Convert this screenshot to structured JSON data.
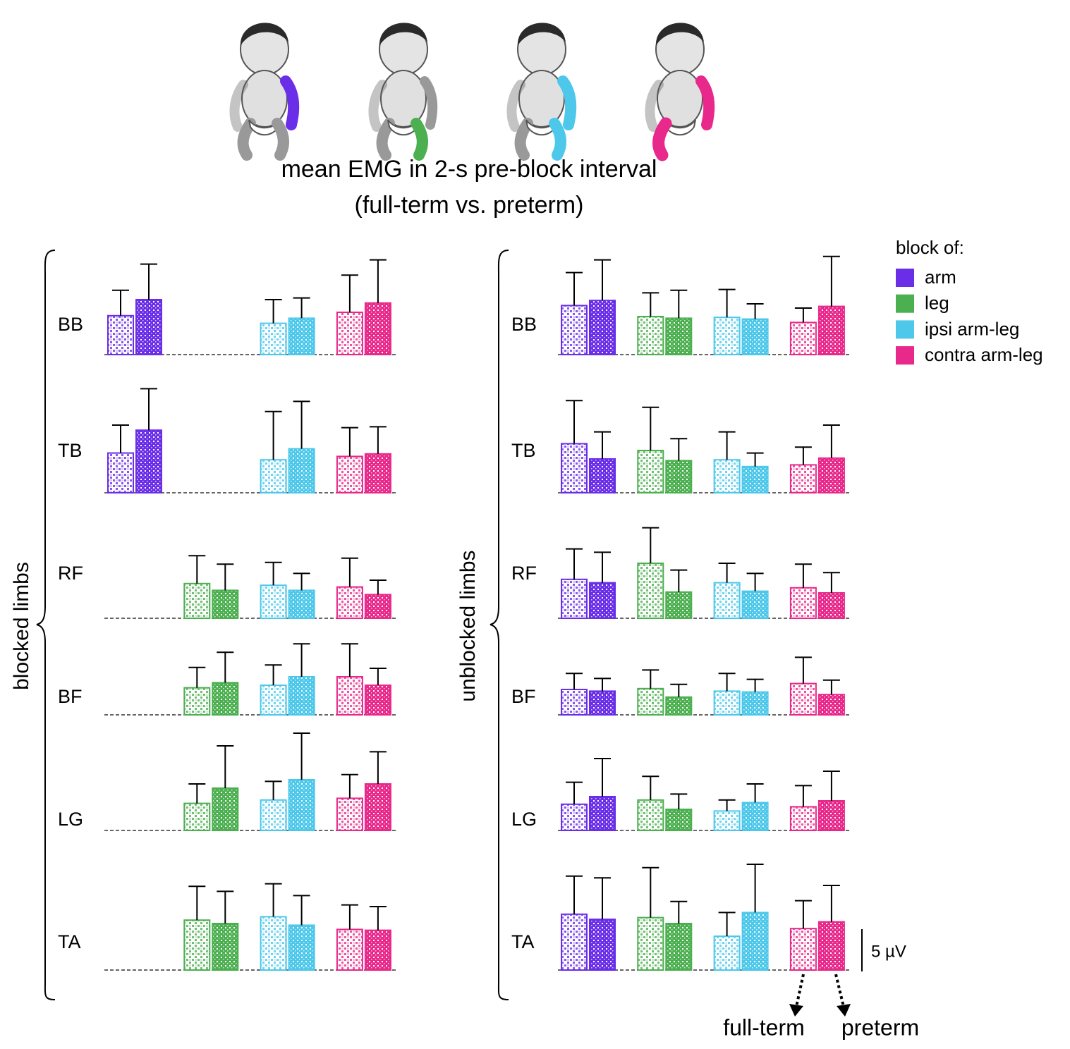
{
  "chart_data": {
    "type": "bar",
    "title": "mean EMG in 2-s pre-block interval",
    "subtitle": "(full-term vs. preterm)",
    "legend_title": "block of:",
    "rows": [
      "BB",
      "TB",
      "RF",
      "BF",
      "LG",
      "TA"
    ],
    "groups": [
      "full-term",
      "preterm"
    ],
    "scale_bar": {
      "value": 5,
      "label": "5 µV"
    },
    "series": [
      {
        "name": "arm",
        "color": "#6a2ee8"
      },
      {
        "name": "leg",
        "color": "#4caf50"
      },
      {
        "name": "ipsi arm-leg",
        "color": "#4dc8ea"
      },
      {
        "name": "contra arm-leg",
        "color": "#e8288a"
      }
    ],
    "panels": [
      {
        "label": "blocked limbs",
        "series": [
          {
            "full_term": [
              4.6,
              4.7,
              null,
              null,
              null,
              null
            ],
            "full_term_error": [
              3.0,
              3.3,
              null,
              null,
              null,
              null
            ],
            "preterm": [
              6.5,
              7.4,
              null,
              null,
              null,
              null
            ],
            "preterm_error": [
              4.2,
              4.9,
              null,
              null,
              null,
              null
            ]
          },
          {
            "full_term": [
              null,
              null,
              4.1,
              3.2,
              3.2,
              5.9
            ],
            "full_term_error": [
              null,
              null,
              3.3,
              2.4,
              2.3,
              4.0
            ],
            "preterm": [
              null,
              null,
              3.3,
              3.8,
              5.0,
              5.5
            ],
            "preterm_error": [
              null,
              null,
              3.1,
              3.6,
              5.0,
              3.8
            ]
          },
          {
            "full_term": [
              3.7,
              3.9,
              3.9,
              3.5,
              3.6,
              6.3
            ],
            "full_term_error": [
              2.8,
              5.7,
              2.7,
              2.4,
              2.2,
              3.9
            ],
            "preterm": [
              4.3,
              5.2,
              3.3,
              4.5,
              6.0,
              5.3
            ],
            "preterm_error": [
              2.4,
              5.6,
              2.0,
              3.9,
              5.5,
              3.5
            ]
          },
          {
            "full_term": [
              5.0,
              4.3,
              3.7,
              4.5,
              3.8,
              4.8
            ],
            "full_term_error": [
              4.4,
              3.4,
              3.4,
              3.9,
              2.8,
              2.9
            ],
            "preterm": [
              6.1,
              4.6,
              2.8,
              3.5,
              5.5,
              4.7
            ],
            "preterm_error": [
              5.1,
              3.2,
              1.7,
              2.0,
              3.8,
              2.8
            ]
          }
        ]
      },
      {
        "label": "unblocked limbs",
        "series": [
          {
            "full_term": [
              5.8,
              5.8,
              4.6,
              3.0,
              3.1,
              6.6
            ],
            "full_term_error": [
              3.9,
              5.1,
              3.6,
              1.9,
              2.6,
              4.5
            ],
            "preterm": [
              6.4,
              4.0,
              4.2,
              2.8,
              4.0,
              6.0
            ],
            "preterm_error": [
              4.8,
              3.2,
              3.6,
              1.5,
              4.5,
              4.9
            ]
          },
          {
            "full_term": [
              4.5,
              5.0,
              6.5,
              3.1,
              3.6,
              6.2
            ],
            "full_term_error": [
              2.8,
              5.1,
              4.2,
              2.2,
              2.8,
              5.9
            ],
            "preterm": [
              4.3,
              3.8,
              3.1,
              2.1,
              2.5,
              5.5
            ],
            "preterm_error": [
              3.3,
              2.6,
              2.6,
              1.5,
              1.8,
              2.6
            ]
          },
          {
            "full_term": [
              4.4,
              3.9,
              4.2,
              2.8,
              2.3,
              4.0
            ],
            "full_term_error": [
              3.3,
              3.3,
              2.3,
              2.1,
              1.3,
              2.8
            ],
            "preterm": [
              4.2,
              3.1,
              3.2,
              2.7,
              3.3,
              6.8
            ],
            "preterm_error": [
              1.8,
              1.6,
              2.1,
              1.5,
              2.2,
              5.7
            ]
          },
          {
            "full_term": [
              3.8,
              3.3,
              3.6,
              3.7,
              2.8,
              4.9
            ],
            "full_term_error": [
              1.7,
              2.1,
              2.8,
              3.1,
              2.5,
              3.3
            ],
            "preterm": [
              5.7,
              4.1,
              3.0,
              2.4,
              3.5,
              5.7
            ],
            "preterm_error": [
              5.9,
              3.9,
              2.4,
              1.7,
              3.5,
              4.3
            ]
          }
        ]
      }
    ]
  }
}
